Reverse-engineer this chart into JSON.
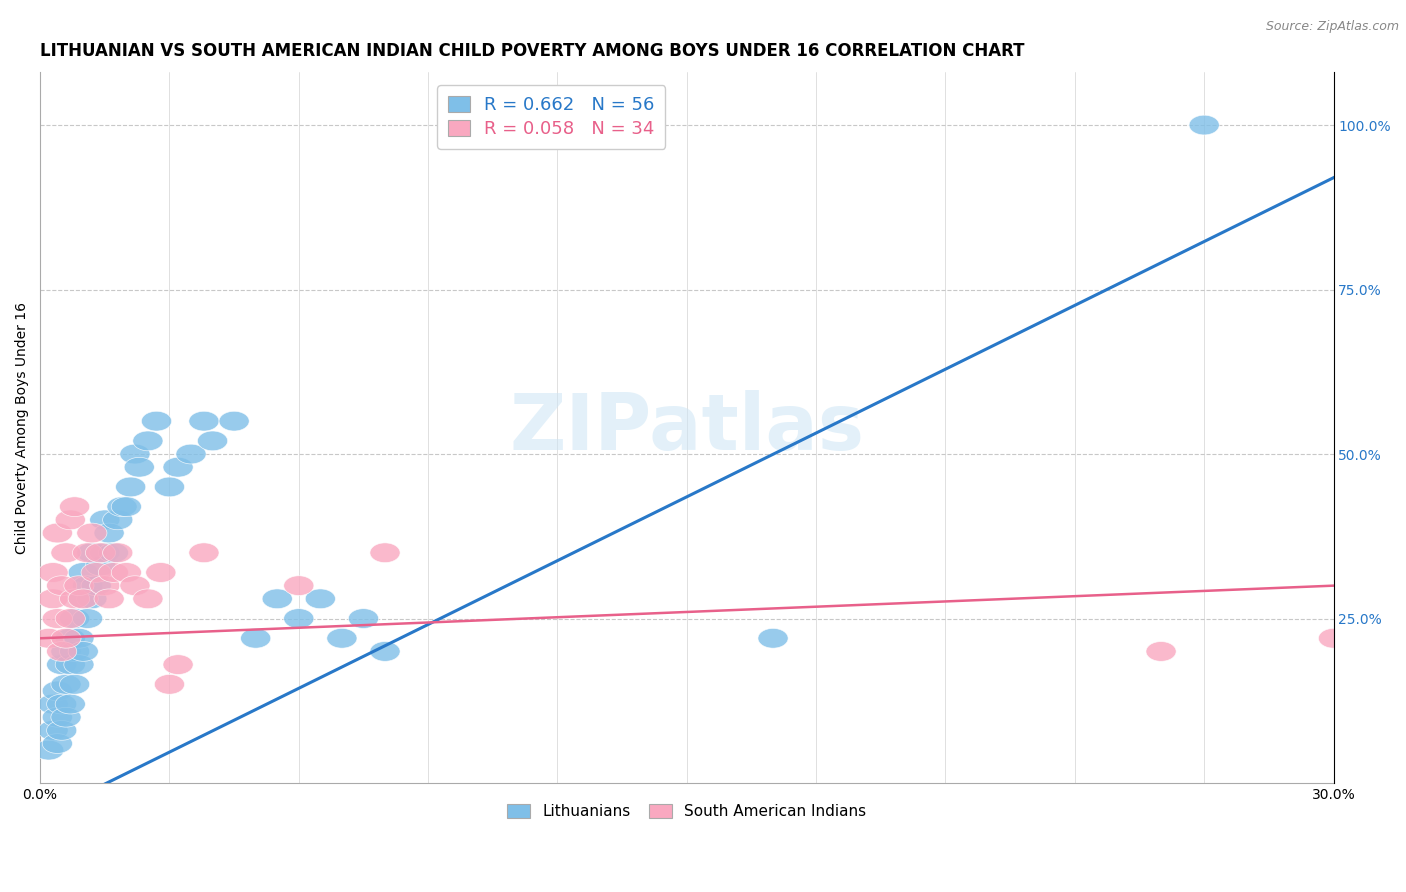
{
  "title": "LITHUANIAN VS SOUTH AMERICAN INDIAN CHILD POVERTY AMONG BOYS UNDER 16 CORRELATION CHART",
  "source": "Source: ZipAtlas.com",
  "ylabel": "Child Poverty Among Boys Under 16",
  "right_ytick_vals": [
    0.25,
    0.5,
    0.75,
    1.0
  ],
  "right_ytick_labels": [
    "25.0%",
    "50.0%",
    "75.0%",
    "100.0%"
  ],
  "xlim": [
    0.0,
    0.3
  ],
  "ylim": [
    0.0,
    1.08
  ],
  "watermark": "ZIPatlas",
  "legend_blue_label": "R = 0.662   N = 56",
  "legend_pink_label": "R = 0.058   N = 34",
  "blue_color": "#7fbfe8",
  "pink_color": "#f9a8c0",
  "blue_line_color": "#2878c8",
  "pink_line_color": "#e8608a",
  "blue_dots": [
    [
      0.002,
      0.05
    ],
    [
      0.003,
      0.08
    ],
    [
      0.003,
      0.12
    ],
    [
      0.004,
      0.06
    ],
    [
      0.004,
      0.1
    ],
    [
      0.004,
      0.14
    ],
    [
      0.005,
      0.08
    ],
    [
      0.005,
      0.12
    ],
    [
      0.005,
      0.18
    ],
    [
      0.006,
      0.1
    ],
    [
      0.006,
      0.15
    ],
    [
      0.006,
      0.2
    ],
    [
      0.007,
      0.12
    ],
    [
      0.007,
      0.18
    ],
    [
      0.007,
      0.22
    ],
    [
      0.008,
      0.15
    ],
    [
      0.008,
      0.2
    ],
    [
      0.008,
      0.25
    ],
    [
      0.009,
      0.18
    ],
    [
      0.009,
      0.22
    ],
    [
      0.01,
      0.2
    ],
    [
      0.01,
      0.28
    ],
    [
      0.01,
      0.32
    ],
    [
      0.011,
      0.25
    ],
    [
      0.011,
      0.3
    ],
    [
      0.012,
      0.28
    ],
    [
      0.012,
      0.35
    ],
    [
      0.013,
      0.3
    ],
    [
      0.014,
      0.33
    ],
    [
      0.015,
      0.35
    ],
    [
      0.015,
      0.4
    ],
    [
      0.016,
      0.38
    ],
    [
      0.017,
      0.35
    ],
    [
      0.018,
      0.4
    ],
    [
      0.019,
      0.42
    ],
    [
      0.02,
      0.42
    ],
    [
      0.021,
      0.45
    ],
    [
      0.022,
      0.5
    ],
    [
      0.023,
      0.48
    ],
    [
      0.025,
      0.52
    ],
    [
      0.027,
      0.55
    ],
    [
      0.03,
      0.45
    ],
    [
      0.032,
      0.48
    ],
    [
      0.035,
      0.5
    ],
    [
      0.038,
      0.55
    ],
    [
      0.04,
      0.52
    ],
    [
      0.045,
      0.55
    ],
    [
      0.05,
      0.22
    ],
    [
      0.055,
      0.28
    ],
    [
      0.06,
      0.25
    ],
    [
      0.065,
      0.28
    ],
    [
      0.07,
      0.22
    ],
    [
      0.075,
      0.25
    ],
    [
      0.08,
      0.2
    ],
    [
      0.17,
      0.22
    ],
    [
      0.27,
      1.0
    ]
  ],
  "pink_dots": [
    [
      0.002,
      0.22
    ],
    [
      0.003,
      0.28
    ],
    [
      0.003,
      0.32
    ],
    [
      0.004,
      0.25
    ],
    [
      0.004,
      0.38
    ],
    [
      0.005,
      0.2
    ],
    [
      0.005,
      0.3
    ],
    [
      0.006,
      0.22
    ],
    [
      0.006,
      0.35
    ],
    [
      0.007,
      0.25
    ],
    [
      0.007,
      0.4
    ],
    [
      0.008,
      0.28
    ],
    [
      0.008,
      0.42
    ],
    [
      0.009,
      0.3
    ],
    [
      0.01,
      0.28
    ],
    [
      0.011,
      0.35
    ],
    [
      0.012,
      0.38
    ],
    [
      0.013,
      0.32
    ],
    [
      0.014,
      0.35
    ],
    [
      0.015,
      0.3
    ],
    [
      0.016,
      0.28
    ],
    [
      0.017,
      0.32
    ],
    [
      0.018,
      0.35
    ],
    [
      0.02,
      0.32
    ],
    [
      0.022,
      0.3
    ],
    [
      0.025,
      0.28
    ],
    [
      0.028,
      0.32
    ],
    [
      0.03,
      0.15
    ],
    [
      0.032,
      0.18
    ],
    [
      0.038,
      0.35
    ],
    [
      0.06,
      0.3
    ],
    [
      0.08,
      0.35
    ],
    [
      0.26,
      0.2
    ],
    [
      0.3,
      0.22
    ]
  ],
  "blue_line": [
    0.0,
    -0.05,
    0.3,
    0.92
  ],
  "pink_line": [
    0.0,
    0.22,
    0.3,
    0.3
  ],
  "grid_color": "#c8c8c8",
  "background_color": "#ffffff",
  "title_fontsize": 12,
  "axis_label_fontsize": 10,
  "tick_fontsize": 10,
  "legend_fontsize": 13
}
